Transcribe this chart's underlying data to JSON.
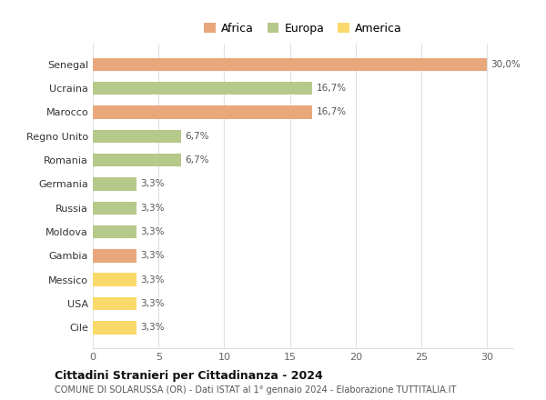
{
  "countries": [
    "Cile",
    "USA",
    "Messico",
    "Gambia",
    "Moldova",
    "Russia",
    "Germania",
    "Romania",
    "Regno Unito",
    "Marocco",
    "Ucraina",
    "Senegal"
  ],
  "values": [
    3.3,
    3.3,
    3.3,
    3.3,
    3.3,
    3.3,
    3.3,
    6.7,
    6.7,
    16.7,
    16.7,
    30.0
  ],
  "colors": [
    "#f9d96a",
    "#f9d96a",
    "#f9d96a",
    "#e8a87c",
    "#b5c98a",
    "#b5c98a",
    "#b5c98a",
    "#b5c98a",
    "#b5c98a",
    "#e8a87c",
    "#b5c98a",
    "#e8a87c"
  ],
  "labels": [
    "3,3%",
    "3,3%",
    "3,3%",
    "3,3%",
    "3,3%",
    "3,3%",
    "3,3%",
    "6,7%",
    "6,7%",
    "16,7%",
    "16,7%",
    "30,0%"
  ],
  "xlim": [
    0,
    32
  ],
  "xticks": [
    0,
    5,
    10,
    15,
    20,
    25,
    30
  ],
  "legend": {
    "Africa": "#e8a87c",
    "Europa": "#b5c98a",
    "America": "#f9d96a"
  },
  "title": "Cittadini Stranieri per Cittadinanza - 2024",
  "subtitle": "COMUNE DI SOLARUSSA (OR) - Dati ISTAT al 1° gennaio 2024 - Elaborazione TUTTITALIA.IT",
  "background_color": "#ffffff",
  "grid_color": "#e0e0e0"
}
